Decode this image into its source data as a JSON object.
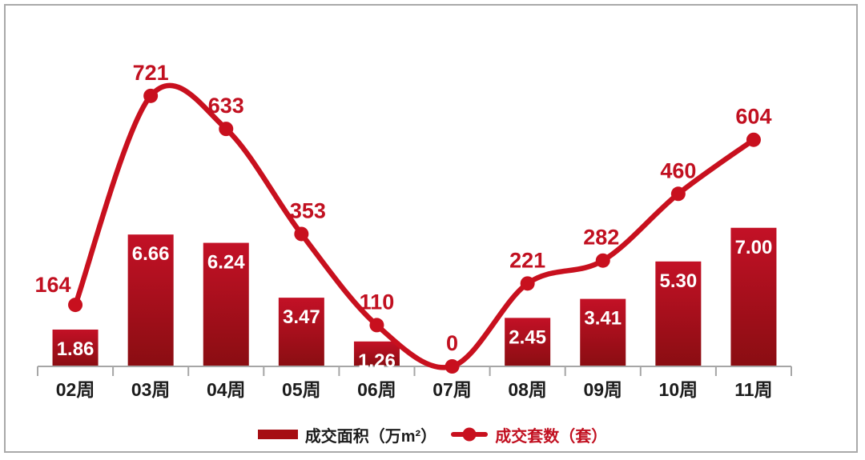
{
  "chart_data": {
    "type": "bar+line",
    "categories": [
      "02周",
      "03周",
      "04周",
      "05周",
      "06周",
      "07周",
      "08周",
      "09周",
      "10周",
      "11周"
    ],
    "series": [
      {
        "name": "成交面积（万m²）",
        "type": "bar",
        "values": [
          1.86,
          6.66,
          6.24,
          3.47,
          1.26,
          0,
          2.45,
          3.41,
          5.3,
          7.0
        ],
        "labels": [
          "1.86",
          "6.66",
          "6.24",
          "3.47",
          "1.26",
          "",
          "2.45",
          "3.41",
          "5.30",
          "7.00"
        ]
      },
      {
        "name": "成交套数（套）",
        "type": "line",
        "values": [
          164,
          721,
          633,
          353,
          110,
          0,
          221,
          282,
          460,
          604
        ],
        "labels": [
          "164",
          "721",
          "633",
          "353",
          "110",
          "0",
          "221",
          "282",
          "460",
          "604"
        ]
      }
    ],
    "title": "",
    "xlabel": "",
    "ylabel": "",
    "grid": false,
    "value_axes_visible": false,
    "bar_axis_implied_max": 17.3,
    "line_axis_implied_max": 912,
    "legend_position": "bottom",
    "colors": {
      "bar_gradient_top": "#c31126",
      "bar_gradient_bottom": "#8a0d12",
      "bar_label": "#ffffff",
      "line": "#c8101e",
      "marker": "#c8101e",
      "data_label": "#c11020",
      "axis_line": "#a6a6a6",
      "axis_label": "#1c1c1c",
      "legend_bar_swatch": "#a60e13",
      "frame_border": "#a9a9a9",
      "background": "#ffffff"
    }
  }
}
